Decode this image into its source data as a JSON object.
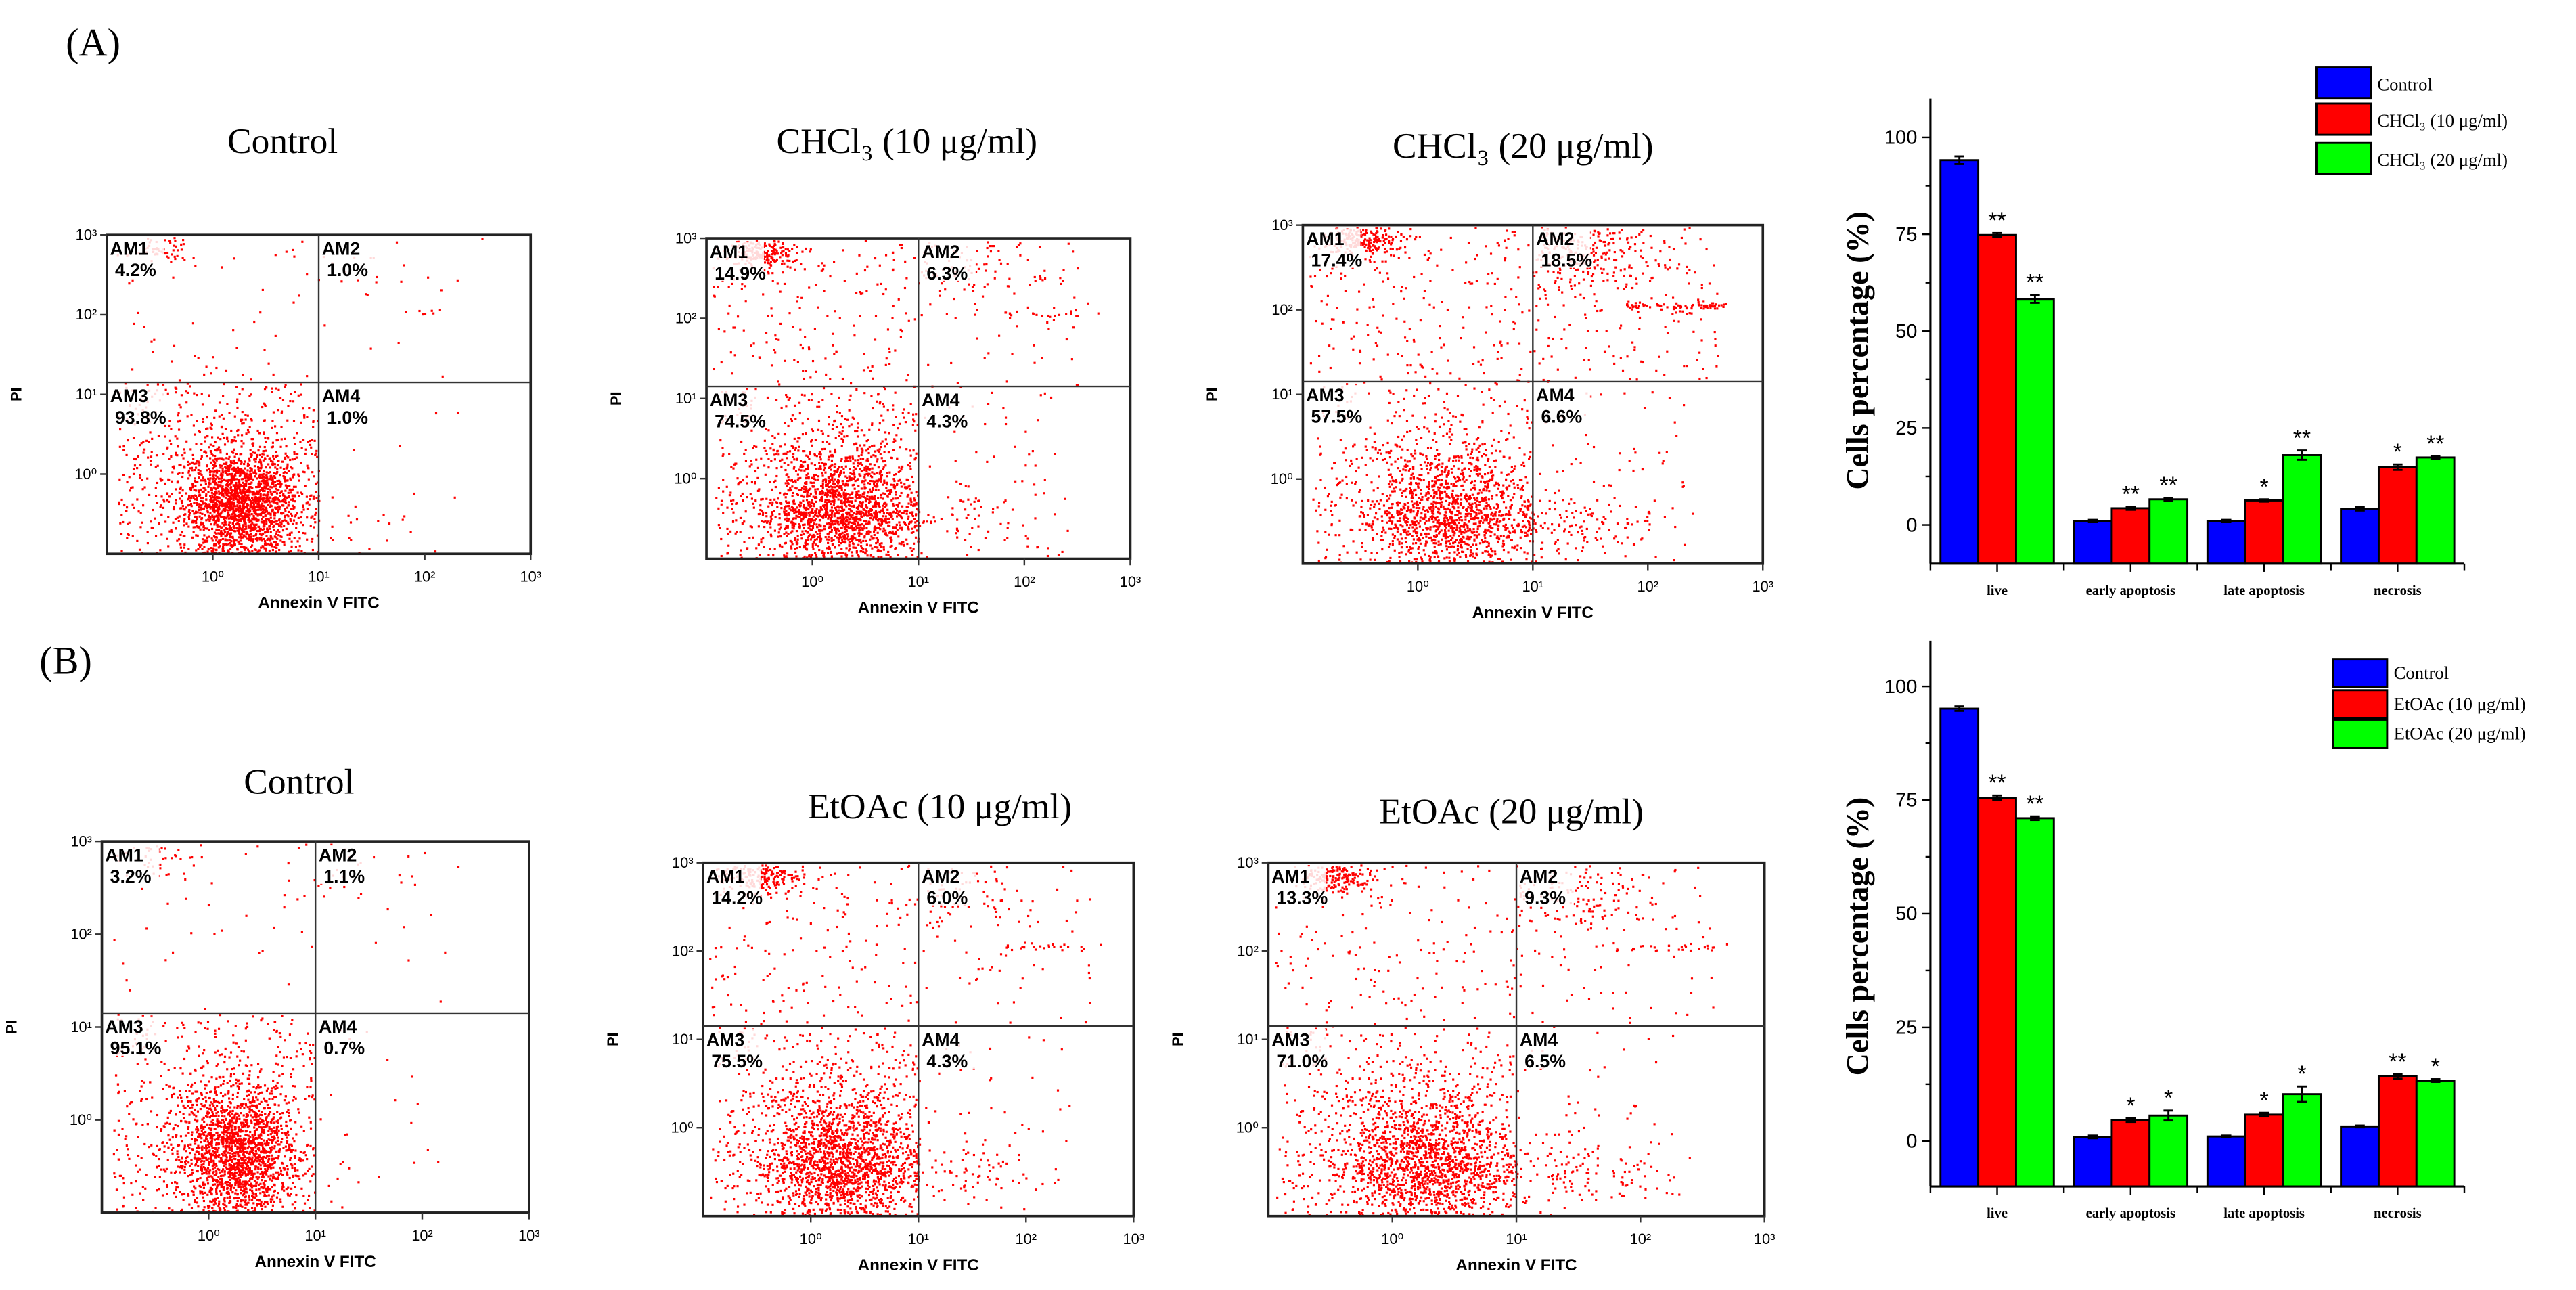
{
  "panels": [
    {
      "label": "(A)"
    },
    {
      "label": "(B)"
    }
  ],
  "chart_data": [
    {
      "type": "scatter",
      "panel": "A",
      "title": "Control",
      "xlabel": "Annexin V FITC",
      "ylabel": "PI",
      "x_ticks": [
        "10⁰",
        "10¹",
        "10²",
        "10³"
      ],
      "y_ticks": [
        "10⁰",
        "10¹",
        "10²",
        "10³"
      ],
      "xlim_log10": [
        -1,
        3
      ],
      "ylim_log10": [
        -1,
        3
      ],
      "quadrants": [
        {
          "name": "AM1",
          "value": "4.2%",
          "pct": 4.2
        },
        {
          "name": "AM2",
          "value": "1.0%",
          "pct": 1.0
        },
        {
          "name": "AM3",
          "value": "93.8%",
          "pct": 93.8
        },
        {
          "name": "AM4",
          "value": "1.0%",
          "pct": 1.0
        }
      ]
    },
    {
      "type": "scatter",
      "panel": "A",
      "title": "CHCl₃ (10 μg/ml)",
      "xlabel": "Annexin V FITC",
      "ylabel": "PI",
      "x_ticks": [
        "10⁰",
        "10¹",
        "10²",
        "10³"
      ],
      "y_ticks": [
        "10⁰",
        "10¹",
        "10²",
        "10³"
      ],
      "xlim_log10": [
        -1,
        3
      ],
      "ylim_log10": [
        -1,
        3
      ],
      "quadrants": [
        {
          "name": "AM1",
          "value": "14.9%",
          "pct": 14.9
        },
        {
          "name": "AM2",
          "value": "6.3%",
          "pct": 6.3
        },
        {
          "name": "AM3",
          "value": "74.5%",
          "pct": 74.5
        },
        {
          "name": "AM4",
          "value": "4.3%",
          "pct": 4.3
        }
      ]
    },
    {
      "type": "scatter",
      "panel": "A",
      "title": "CHCl₃ (20 μg/ml)",
      "xlabel": "Annexin V FITC",
      "ylabel": "PI",
      "x_ticks": [
        "10⁰",
        "10¹",
        "10²",
        "10³"
      ],
      "y_ticks": [
        "10⁰",
        "10¹",
        "10²",
        "10³"
      ],
      "xlim_log10": [
        -1,
        3
      ],
      "ylim_log10": [
        -1,
        3
      ],
      "quadrants": [
        {
          "name": "AM1",
          "value": "17.4%",
          "pct": 17.4
        },
        {
          "name": "AM2",
          "value": "18.5%",
          "pct": 18.5
        },
        {
          "name": "AM3",
          "value": "57.5%",
          "pct": 57.5
        },
        {
          "name": "AM4",
          "value": "6.6%",
          "pct": 6.6
        }
      ]
    },
    {
      "type": "scatter",
      "panel": "B",
      "title": "Control",
      "xlabel": "Annexin V FITC",
      "ylabel": "PI",
      "x_ticks": [
        "10⁰",
        "10¹",
        "10²",
        "10³"
      ],
      "y_ticks": [
        "10⁰",
        "10¹",
        "10²",
        "10³"
      ],
      "xlim_log10": [
        -1,
        3
      ],
      "ylim_log10": [
        -1,
        3
      ],
      "quadrants": [
        {
          "name": "AM1",
          "value": "3.2%",
          "pct": 3.2
        },
        {
          "name": "AM2",
          "value": "1.1%",
          "pct": 1.1
        },
        {
          "name": "AM3",
          "value": "95.1%",
          "pct": 95.1
        },
        {
          "name": "AM4",
          "value": "0.7%",
          "pct": 0.7
        }
      ]
    },
    {
      "type": "scatter",
      "panel": "B",
      "title": "EtOAc (10 μg/ml)",
      "xlabel": "Annexin V FITC",
      "ylabel": "PI",
      "x_ticks": [
        "10⁰",
        "10¹",
        "10²",
        "10³"
      ],
      "y_ticks": [
        "10⁰",
        "10¹",
        "10²",
        "10³"
      ],
      "xlim_log10": [
        -1,
        3
      ],
      "ylim_log10": [
        -1,
        3
      ],
      "quadrants": [
        {
          "name": "AM1",
          "value": "14.2%",
          "pct": 14.2
        },
        {
          "name": "AM2",
          "value": "6.0%",
          "pct": 6.0
        },
        {
          "name": "AM3",
          "value": "75.5%",
          "pct": 75.5
        },
        {
          "name": "AM4",
          "value": "4.3%",
          "pct": 4.3
        }
      ]
    },
    {
      "type": "scatter",
      "panel": "B",
      "title": "EtOAc (20 μg/ml)",
      "xlabel": "Annexin V FITC",
      "ylabel": "PI",
      "x_ticks": [
        "10⁰",
        "10¹",
        "10²",
        "10³"
      ],
      "y_ticks": [
        "10⁰",
        "10¹",
        "10²",
        "10³"
      ],
      "xlim_log10": [
        -1,
        3
      ],
      "ylim_log10": [
        -1,
        3
      ],
      "quadrants": [
        {
          "name": "AM1",
          "value": "13.3%",
          "pct": 13.3
        },
        {
          "name": "AM2",
          "value": "9.3%",
          "pct": 9.3
        },
        {
          "name": "AM3",
          "value": "71.0%",
          "pct": 71.0
        },
        {
          "name": "AM4",
          "value": "6.5%",
          "pct": 6.5
        }
      ]
    },
    {
      "type": "bar",
      "panel": "A",
      "ylabel": "Cells percentage (%)",
      "xlabel": "",
      "categories": [
        "live",
        "early apoptosis",
        "late apoptosis",
        "necrosis"
      ],
      "ylim": [
        -10,
        110
      ],
      "y_ticks": [
        0,
        25,
        50,
        75,
        100
      ],
      "series": [
        {
          "name": "Control",
          "color": "#0000ff",
          "values": [
            94.1,
            1.0,
            1.0,
            4.2
          ],
          "errors": [
            1.0,
            0.3,
            0.3,
            0.5
          ],
          "sig": [
            "",
            "",
            "",
            ""
          ]
        },
        {
          "name": "CHCl₃ (10 μg/ml)",
          "color": "#ff0000",
          "values": [
            74.8,
            4.3,
            6.3,
            14.9
          ],
          "errors": [
            0.5,
            0.4,
            0.3,
            0.7
          ],
          "sig": [
            "**",
            "**",
            "*",
            "*"
          ]
        },
        {
          "name": "CHCl₃ (20 μg/ml)",
          "color": "#00ff00",
          "values": [
            58.3,
            6.6,
            18.0,
            17.4
          ],
          "errors": [
            1.0,
            0.4,
            1.2,
            0.3
          ],
          "sig": [
            "**",
            "**",
            "**",
            "**"
          ]
        }
      ],
      "legend": "top-right"
    },
    {
      "type": "bar",
      "panel": "B",
      "ylabel": "Cells percentage (%)",
      "xlabel": "",
      "categories": [
        "live",
        "early apoptosis",
        "late apoptosis",
        "necrosis"
      ],
      "ylim": [
        -10,
        110
      ],
      "y_ticks": [
        0,
        25,
        50,
        75,
        100
      ],
      "series": [
        {
          "name": "Control",
          "color": "#0000ff",
          "values": [
            95.1,
            0.9,
            1.0,
            3.2
          ],
          "errors": [
            0.5,
            0.3,
            0.2,
            0.2
          ],
          "sig": [
            "",
            "",
            "",
            ""
          ]
        },
        {
          "name": "EtOAc (10 μg/ml)",
          "color": "#ff0000",
          "values": [
            75.5,
            4.6,
            5.8,
            14.2
          ],
          "errors": [
            0.5,
            0.4,
            0.4,
            0.5
          ],
          "sig": [
            "**",
            "*",
            "*",
            "**"
          ]
        },
        {
          "name": "EtOAc (20 μg/ml)",
          "color": "#00ff00",
          "values": [
            71.0,
            5.6,
            10.3,
            13.3
          ],
          "errors": [
            0.4,
            1.1,
            1.7,
            0.3
          ],
          "sig": [
            "**",
            "*",
            "*",
            "*"
          ]
        }
      ],
      "legend": "top-right"
    }
  ]
}
